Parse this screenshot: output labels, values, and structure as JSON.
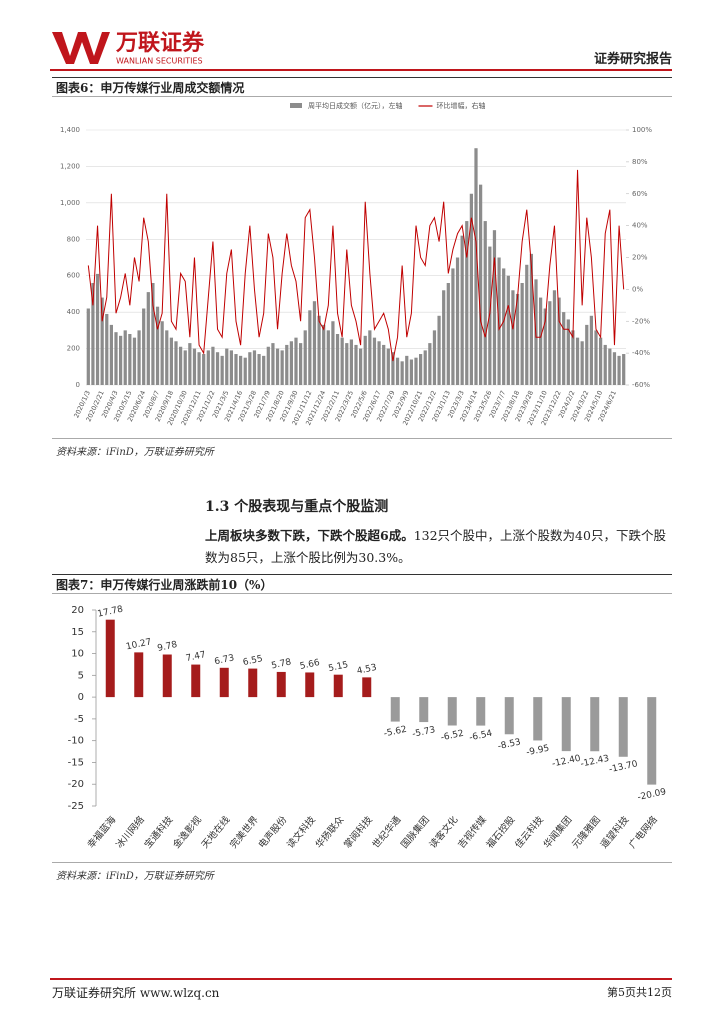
{
  "header": {
    "logo": "万联证券",
    "logo_en": "WANLIAN SECURITIES",
    "report_type": "证券研究报告"
  },
  "figure_6": {
    "title": "图表6：申万传媒行业周成交额情况",
    "source": "资料来源：iFinD，万联证券研究所"
  },
  "section": {
    "heading": "1.3 个股表现与重点个股监测",
    "lead": "上周板块多数下跌，下跌个股超6成。",
    "body": "132只个股中，上涨个股数为40只，下跌个股数为85只，上涨个股比例为30.3%。"
  },
  "figure_7": {
    "title": "图表7：申万传媒行业周涨跌前10（%）",
    "source": "资料来源：iFinD，万联证券研究所"
  },
  "footer": {
    "left": "万联证券研究所 www.wlzq.cn",
    "right": "第5页共12页"
  },
  "chart_data": [
    {
      "type": "combo",
      "categories": [
        "2020/1/3",
        null,
        null,
        "2020/2/21",
        null,
        null,
        "2020/4/3",
        null,
        null,
        "2020/5/15",
        null,
        null,
        "2020/6/24",
        null,
        null,
        "2020/8/7",
        null,
        null,
        "2020/9/18",
        null,
        null,
        "2020/10/30",
        null,
        null,
        "2020/12/11",
        null,
        null,
        "2021/1/22",
        null,
        null,
        "2021/3/5",
        null,
        null,
        "2021/4/16",
        null,
        null,
        "2021/5/28",
        null,
        null,
        "2021/7/9",
        null,
        null,
        "2021/8/20",
        null,
        null,
        "2021/9/30",
        null,
        null,
        "2021/11/12",
        null,
        null,
        "2021/12/24",
        null,
        null,
        "2022/2/11",
        null,
        null,
        "2022/3/25",
        null,
        null,
        "2022/5/6",
        null,
        null,
        "2022/6/17",
        null,
        null,
        "2022/7/29",
        null,
        null,
        "2022/9/9",
        null,
        null,
        "2022/10/21",
        null,
        null,
        "2022/12/2",
        null,
        null,
        "2023/1/13",
        null,
        null,
        "2023/3/3",
        null,
        null,
        "2023/4/14",
        null,
        null,
        "2023/5/26",
        null,
        null,
        "2023/7/7",
        null,
        null,
        "2023/8/18",
        null,
        null,
        "2023/9/28",
        null,
        null,
        "2023/11/10",
        null,
        null,
        "2023/12/22",
        null,
        null,
        "2024/2/2",
        null,
        null,
        "2024/3/22",
        null,
        null,
        "2024/5/10",
        null,
        null,
        "2024/6/21",
        null,
        null
      ],
      "series": [
        {
          "name": "周平均日成交额（亿元），左轴",
          "type": "bar",
          "color": "#8c8c8c",
          "values": [
            420,
            560,
            610,
            480,
            390,
            330,
            290,
            270,
            300,
            280,
            260,
            300,
            420,
            510,
            560,
            430,
            350,
            300,
            260,
            240,
            210,
            190,
            230,
            200,
            180,
            170,
            190,
            210,
            180,
            160,
            200,
            190,
            170,
            160,
            150,
            180,
            190,
            170,
            160,
            210,
            230,
            200,
            190,
            220,
            240,
            260,
            230,
            300,
            410,
            460,
            380,
            330,
            300,
            350,
            280,
            260,
            230,
            250,
            220,
            200,
            270,
            300,
            260,
            240,
            220,
            200,
            180,
            150,
            130,
            160,
            140,
            150,
            170,
            190,
            230,
            300,
            380,
            520,
            560,
            640,
            700,
            820,
            900,
            1050,
            1300,
            1100,
            900,
            760,
            850,
            700,
            640,
            600,
            520,
            500,
            560,
            660,
            720,
            580,
            480,
            420,
            460,
            520,
            480,
            400,
            360,
            300,
            260,
            240,
            330,
            380,
            300,
            260,
            220,
            200,
            180,
            160,
            170
          ]
        },
        {
          "name": "环比增幅，右轴",
          "type": "line",
          "axis": "y2",
          "color": "#c00000",
          "values": [
            15,
            -10,
            40,
            -20,
            -5,
            60,
            -15,
            -5,
            10,
            -10,
            20,
            5,
            45,
            30,
            -10,
            -25,
            -15,
            60,
            -20,
            -25,
            10,
            5,
            -30,
            20,
            -35,
            -40,
            -5,
            30,
            -25,
            -30,
            10,
            25,
            -20,
            -35,
            10,
            40,
            0,
            -30,
            -15,
            35,
            20,
            -25,
            10,
            35,
            15,
            5,
            -20,
            45,
            50,
            20,
            -20,
            -25,
            -10,
            40,
            -15,
            -30,
            25,
            -10,
            -20,
            -35,
            55,
            10,
            -25,
            -20,
            -15,
            -25,
            -45,
            -30,
            15,
            -30,
            -15,
            40,
            20,
            15,
            40,
            45,
            30,
            55,
            10,
            25,
            35,
            40,
            20,
            45,
            30,
            -20,
            -30,
            -15,
            20,
            -25,
            -20,
            -10,
            -25,
            -5,
            30,
            50,
            15,
            -30,
            -30,
            -20,
            15,
            40,
            -20,
            -25,
            -25,
            -30,
            75,
            -10,
            45,
            20,
            -25,
            -30,
            35,
            50,
            -35,
            40,
            0
          ]
        }
      ],
      "ylim": [
        0,
        1400
      ],
      "yticks": [
        0,
        200,
        400,
        600,
        800,
        {
          "value": 1000,
          "label": "1,000"
        },
        {
          "value": 1200,
          "label": "1,200"
        },
        {
          "value": 1400,
          "label": "1,400"
        }
      ],
      "y2lim": [
        -60,
        100
      ],
      "y2ticks": [
        {
          "value": -60,
          "label": "-60%"
        },
        {
          "value": -40,
          "label": "-40%"
        },
        {
          "value": -20,
          "label": "-20%"
        },
        {
          "value": 0,
          "label": "0%"
        },
        {
          "value": 20,
          "label": "20%"
        },
        {
          "value": 40,
          "label": "40%"
        },
        {
          "value": 60,
          "label": "60%"
        },
        {
          "value": 80,
          "label": "80%"
        },
        {
          "value": 100,
          "label": "100%"
        }
      ],
      "grid": true,
      "legend": "top"
    },
    {
      "type": "bar",
      "categories": [
        "幸福蓝海",
        "冰川网络",
        "宝通科技",
        "金逸影视",
        "天地在线",
        "完美世界",
        "电声股份",
        "读文科技",
        "华扬联众",
        "掌阅科技",
        "世纪华通",
        "国脉集团",
        "读客文化",
        "吉视传媒",
        "福石控股",
        "佳云科技",
        "华闻集团",
        "元隆雅图",
        "遥望科技",
        "广电网络"
      ],
      "values": [
        17.78,
        10.27,
        9.78,
        7.47,
        6.73,
        6.55,
        5.78,
        5.66,
        5.15,
        4.53,
        -5.62,
        -5.73,
        -6.52,
        -6.54,
        -8.53,
        -9.95,
        -12.4,
        -12.43,
        -13.7,
        -20.09
      ],
      "value_labels": [
        "17.78",
        "10.27",
        "9.78",
        "7.47",
        "6.73",
        "6.55",
        "5.78",
        "5.66",
        "5.15",
        "4.53",
        "-5.62",
        "-5.73",
        "-6.52",
        "-6.54",
        "-8.53",
        "-9.95",
        "-12.40",
        "-12.43",
        "-13.70",
        "-20.09"
      ],
      "colors": {
        "positive": "#a51c1c",
        "negative": "#9a9a9a"
      },
      "ylim": [
        -25,
        20
      ],
      "yticks": [
        -25,
        -20,
        -15,
        -10,
        -5,
        0,
        5,
        10,
        15,
        20
      ]
    }
  ]
}
